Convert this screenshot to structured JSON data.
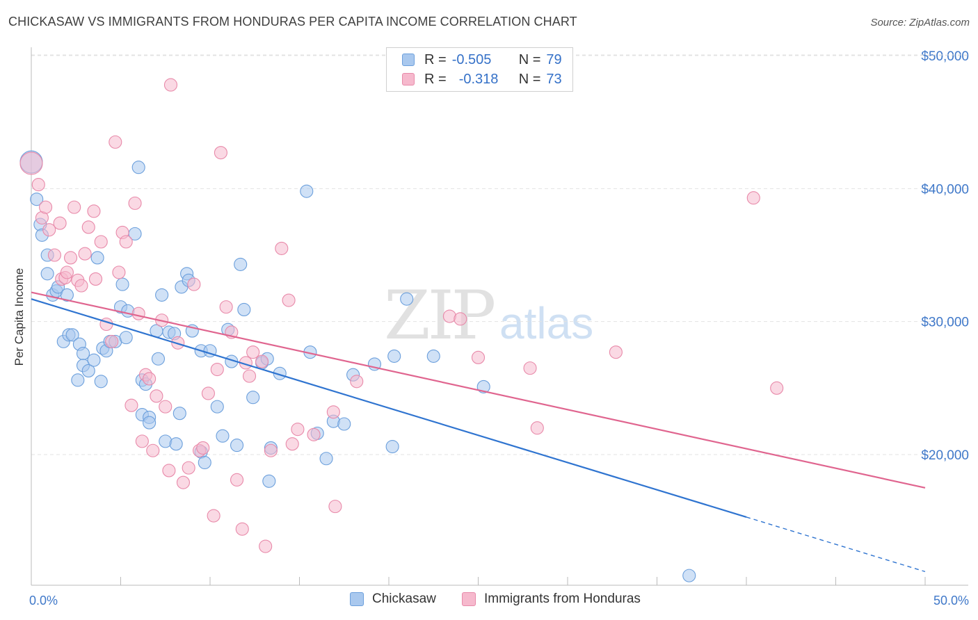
{
  "title": "CHICKASAW VS IMMIGRANTS FROM HONDURAS PER CAPITA INCOME CORRELATION CHART",
  "source": "Source: ZipAtlas.com",
  "watermark": {
    "zip": "ZIP",
    "atlas": "atlas"
  },
  "legend": {
    "rows": [
      {
        "r_label": "R =",
        "r_value": "-0.505",
        "n_label": "N =",
        "n_value": "79",
        "color": "#a9c8ee",
        "border": "#6b9fdc"
      },
      {
        "r_label": "R =",
        "r_value": "-0.318",
        "n_label": "N =",
        "n_value": "73",
        "color": "#f6b9cd",
        "border": "#e889a9"
      }
    ]
  },
  "bottom_legend": [
    {
      "label": "Chickasaw",
      "color": "#a9c8ee",
      "border": "#6b9fdc"
    },
    {
      "label": "Immigrants from Honduras",
      "color": "#f6b9cd",
      "border": "#e889a9"
    }
  ],
  "chart_data": {
    "type": "scatter",
    "title": "CHICKASAW VS IMMIGRANTS FROM HONDURAS PER CAPITA INCOME CORRELATION CHART",
    "xlabel": "",
    "ylabel": "Per Capita Income",
    "xlim": [
      0,
      50
    ],
    "ylim": [
      10000,
      52000
    ],
    "x_tick_labels": [
      "0.0%",
      "50.0%"
    ],
    "y_ticks": [
      20000,
      30000,
      40000,
      50000
    ],
    "y_tick_labels": [
      "$20,000",
      "$30,000",
      "$40,000",
      "$50,000"
    ],
    "grid": true,
    "series": [
      {
        "name": "Chickasaw",
        "color": "#6b9fdc",
        "fill": "#a9c8ee",
        "line_color": "#2f74d0",
        "trend": {
          "x0": 0,
          "y0": 31700,
          "x1": 40.0,
          "y1": 15300,
          "dash_to_x": 50,
          "dash_to_y": 11200
        },
        "points": [
          [
            0.0,
            42000
          ],
          [
            0.3,
            39200
          ],
          [
            0.5,
            37300
          ],
          [
            0.6,
            36500
          ],
          [
            0.9,
            35000
          ],
          [
            0.9,
            33600
          ],
          [
            1.2,
            32000
          ],
          [
            1.4,
            32300
          ],
          [
            1.5,
            32600
          ],
          [
            2.0,
            32000
          ],
          [
            1.8,
            28500
          ],
          [
            2.1,
            29000
          ],
          [
            2.3,
            29000
          ],
          [
            2.7,
            28300
          ],
          [
            2.9,
            27600
          ],
          [
            2.9,
            26700
          ],
          [
            3.2,
            26300
          ],
          [
            3.5,
            27100
          ],
          [
            2.6,
            25600
          ],
          [
            3.9,
            25500
          ],
          [
            3.7,
            34800
          ],
          [
            4.0,
            28000
          ],
          [
            4.2,
            27800
          ],
          [
            4.4,
            28500
          ],
          [
            4.7,
            28500
          ],
          [
            5.0,
            31100
          ],
          [
            5.1,
            32800
          ],
          [
            5.4,
            30800
          ],
          [
            5.3,
            28800
          ],
          [
            5.8,
            36600
          ],
          [
            6.0,
            41600
          ],
          [
            6.2,
            23000
          ],
          [
            6.2,
            25600
          ],
          [
            6.4,
            25300
          ],
          [
            6.6,
            22800
          ],
          [
            6.6,
            22400
          ],
          [
            7.1,
            27200
          ],
          [
            7.0,
            29300
          ],
          [
            7.3,
            32000
          ],
          [
            7.5,
            21000
          ],
          [
            7.7,
            29200
          ],
          [
            8.0,
            29100
          ],
          [
            8.1,
            20800
          ],
          [
            8.3,
            23100
          ],
          [
            8.4,
            32600
          ],
          [
            8.7,
            33600
          ],
          [
            8.8,
            33100
          ],
          [
            9.0,
            29300
          ],
          [
            9.5,
            27800
          ],
          [
            9.5,
            20200
          ],
          [
            9.7,
            19400
          ],
          [
            10.0,
            27800
          ],
          [
            10.4,
            23600
          ],
          [
            10.7,
            21400
          ],
          [
            11.0,
            29400
          ],
          [
            11.2,
            27000
          ],
          [
            11.5,
            20700
          ],
          [
            11.7,
            34300
          ],
          [
            11.9,
            30900
          ],
          [
            12.4,
            24300
          ],
          [
            12.9,
            26900
          ],
          [
            13.2,
            27200
          ],
          [
            13.4,
            20500
          ],
          [
            13.3,
            18000
          ],
          [
            13.9,
            26100
          ],
          [
            15.4,
            39800
          ],
          [
            15.6,
            27700
          ],
          [
            16.0,
            21600
          ],
          [
            16.5,
            19700
          ],
          [
            16.9,
            22500
          ],
          [
            17.5,
            22300
          ],
          [
            18.0,
            26000
          ],
          [
            19.2,
            26800
          ],
          [
            20.2,
            20600
          ],
          [
            20.3,
            27400
          ],
          [
            21.0,
            31700
          ],
          [
            22.5,
            27400
          ],
          [
            25.3,
            25100
          ],
          [
            36.8,
            10900
          ]
        ]
      },
      {
        "name": "Immigrants from Honduras",
        "color": "#e889a9",
        "fill": "#f6b9cd",
        "line_color": "#e0658f",
        "trend": {
          "x0": 0,
          "y0": 32200,
          "x1": 50,
          "y1": 17500
        },
        "points": [
          [
            0.0,
            41900
          ],
          [
            0.4,
            40300
          ],
          [
            0.6,
            37800
          ],
          [
            0.8,
            38600
          ],
          [
            1.0,
            36900
          ],
          [
            1.3,
            35000
          ],
          [
            1.6,
            37400
          ],
          [
            1.7,
            33200
          ],
          [
            1.9,
            33300
          ],
          [
            2.0,
            33700
          ],
          [
            2.2,
            34800
          ],
          [
            2.4,
            38600
          ],
          [
            2.6,
            33100
          ],
          [
            2.8,
            32700
          ],
          [
            3.0,
            35100
          ],
          [
            3.2,
            37100
          ],
          [
            3.5,
            38300
          ],
          [
            3.6,
            33200
          ],
          [
            3.9,
            36000
          ],
          [
            4.2,
            29800
          ],
          [
            4.5,
            28500
          ],
          [
            4.7,
            43500
          ],
          [
            4.9,
            33700
          ],
          [
            5.1,
            36700
          ],
          [
            5.3,
            36000
          ],
          [
            5.6,
            23700
          ],
          [
            5.8,
            38900
          ],
          [
            6.0,
            30600
          ],
          [
            6.2,
            21000
          ],
          [
            6.4,
            26000
          ],
          [
            6.6,
            25700
          ],
          [
            6.8,
            20300
          ],
          [
            7.0,
            24400
          ],
          [
            7.3,
            30100
          ],
          [
            7.5,
            23600
          ],
          [
            7.7,
            18800
          ],
          [
            7.8,
            47800
          ],
          [
            8.2,
            28400
          ],
          [
            8.5,
            17900
          ],
          [
            8.8,
            19000
          ],
          [
            9.1,
            32800
          ],
          [
            9.4,
            20300
          ],
          [
            9.6,
            20500
          ],
          [
            9.9,
            24600
          ],
          [
            10.2,
            15400
          ],
          [
            10.4,
            26400
          ],
          [
            10.6,
            42700
          ],
          [
            10.9,
            31100
          ],
          [
            11.2,
            29200
          ],
          [
            11.5,
            18100
          ],
          [
            11.8,
            14400
          ],
          [
            12.0,
            26900
          ],
          [
            12.2,
            25900
          ],
          [
            12.4,
            27700
          ],
          [
            12.9,
            27000
          ],
          [
            13.1,
            13100
          ],
          [
            13.4,
            20300
          ],
          [
            14.0,
            35500
          ],
          [
            14.4,
            31600
          ],
          [
            14.6,
            20800
          ],
          [
            14.9,
            21900
          ],
          [
            15.8,
            21500
          ],
          [
            16.9,
            23200
          ],
          [
            17.0,
            16100
          ],
          [
            18.2,
            25500
          ],
          [
            23.4,
            30400
          ],
          [
            24.0,
            30200
          ],
          [
            25.0,
            27300
          ],
          [
            27.9,
            26500
          ],
          [
            28.3,
            22000
          ],
          [
            32.7,
            27700
          ],
          [
            40.4,
            39300
          ],
          [
            41.7,
            25000
          ]
        ]
      }
    ]
  }
}
